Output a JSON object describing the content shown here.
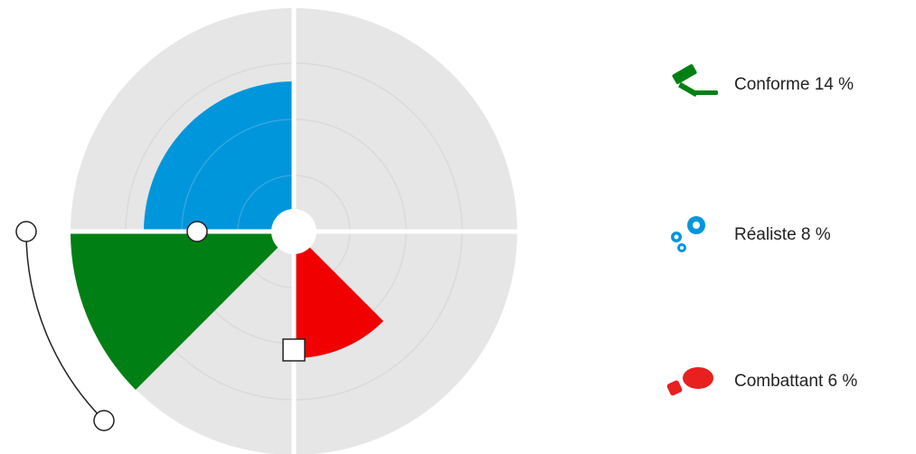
{
  "legend": [
    {
      "label": "Conforme 14 %"
    },
    {
      "label": "Réaliste 8 %"
    },
    {
      "label": "Combattant 6 %"
    }
  ]
}
